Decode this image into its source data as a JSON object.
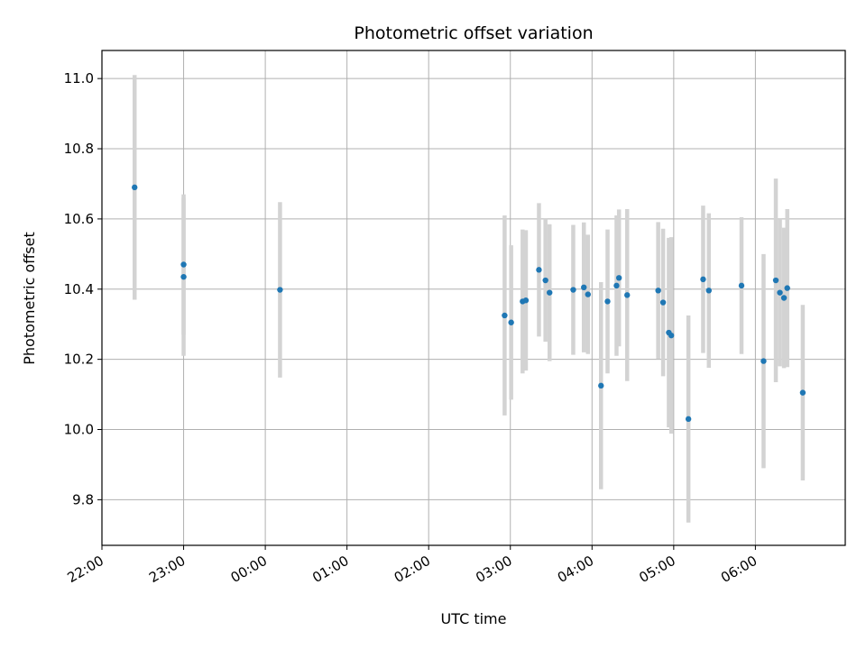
{
  "chart_data": {
    "type": "scatter",
    "title": "Photometric offset variation",
    "xlabel": "UTC time",
    "ylabel": "Photometric offset",
    "x_unit": "hours after 22:00 UTC",
    "xlim": [
      0,
      9.1
    ],
    "ylim": [
      9.67,
      11.08
    ],
    "x_ticks": [
      0,
      1,
      2,
      3,
      4,
      5,
      6,
      7,
      8
    ],
    "x_tick_labels": [
      "22:00",
      "23:00",
      "00:00",
      "01:00",
      "02:00",
      "03:00",
      "04:00",
      "05:00",
      "06:00"
    ],
    "y_ticks": [
      9.8,
      10.0,
      10.2,
      10.4,
      10.6,
      10.8,
      11.0
    ],
    "y_tick_labels": [
      "9.8",
      "10.0",
      "10.2",
      "10.4",
      "10.6",
      "10.8",
      "11.0"
    ],
    "grid": true,
    "colors": {
      "point": "#1f77b4",
      "errorbar": "#d3d3d3",
      "grid": "#b0b0b0",
      "axes": "#000000"
    },
    "points": [
      {
        "x": 0.4,
        "y": 10.69,
        "err": 0.32
      },
      {
        "x": 1.0,
        "y": 10.47,
        "err": 0.2
      },
      {
        "x": 1.0,
        "y": 10.435,
        "err": 0.225
      },
      {
        "x": 2.18,
        "y": 10.398,
        "err": 0.25
      },
      {
        "x": 4.93,
        "y": 10.325,
        "err": 0.285
      },
      {
        "x": 5.01,
        "y": 10.305,
        "err": 0.22
      },
      {
        "x": 5.15,
        "y": 10.365,
        "err": 0.205
      },
      {
        "x": 5.19,
        "y": 10.368,
        "err": 0.2
      },
      {
        "x": 5.35,
        "y": 10.455,
        "err": 0.19
      },
      {
        "x": 5.43,
        "y": 10.425,
        "err": 0.175
      },
      {
        "x": 5.48,
        "y": 10.39,
        "err": 0.195
      },
      {
        "x": 5.77,
        "y": 10.398,
        "err": 0.185
      },
      {
        "x": 5.9,
        "y": 10.405,
        "err": 0.185
      },
      {
        "x": 5.95,
        "y": 10.385,
        "err": 0.17
      },
      {
        "x": 6.11,
        "y": 10.125,
        "err": 0.295
      },
      {
        "x": 6.19,
        "y": 10.365,
        "err": 0.205
      },
      {
        "x": 6.3,
        "y": 10.41,
        "err": 0.2
      },
      {
        "x": 6.33,
        "y": 10.432,
        "err": 0.195
      },
      {
        "x": 6.43,
        "y": 10.383,
        "err": 0.245
      },
      {
        "x": 6.81,
        "y": 10.396,
        "err": 0.195
      },
      {
        "x": 6.87,
        "y": 10.362,
        "err": 0.21
      },
      {
        "x": 6.94,
        "y": 10.276,
        "err": 0.27
      },
      {
        "x": 6.97,
        "y": 10.268,
        "err": 0.28
      },
      {
        "x": 7.18,
        "y": 10.03,
        "err": 0.295
      },
      {
        "x": 7.36,
        "y": 10.428,
        "err": 0.21
      },
      {
        "x": 7.43,
        "y": 10.396,
        "err": 0.22
      },
      {
        "x": 7.83,
        "y": 10.41,
        "err": 0.195
      },
      {
        "x": 8.1,
        "y": 10.195,
        "err": 0.305
      },
      {
        "x": 8.25,
        "y": 10.425,
        "err": 0.29
      },
      {
        "x": 8.3,
        "y": 10.39,
        "err": 0.21
      },
      {
        "x": 8.35,
        "y": 10.375,
        "err": 0.2
      },
      {
        "x": 8.39,
        "y": 10.403,
        "err": 0.225
      },
      {
        "x": 8.58,
        "y": 10.105,
        "err": 0.25
      }
    ]
  }
}
